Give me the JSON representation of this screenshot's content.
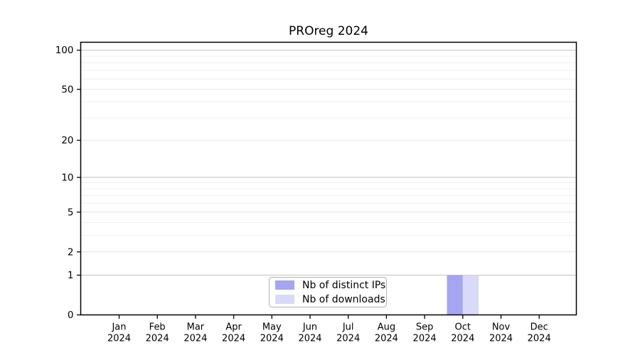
{
  "chart_data": {
    "type": "bar",
    "title": "PROreg 2024",
    "categories": [
      "Jan",
      "Feb",
      "Mar",
      "Apr",
      "May",
      "Jun",
      "Jul",
      "Aug",
      "Sep",
      "Oct",
      "Nov",
      "Dec"
    ],
    "x_tick_year": "2024",
    "series": [
      {
        "name": "Nb of distinct IPs",
        "color": "#a5a5f2",
        "values": [
          0,
          0,
          0,
          0,
          0,
          0,
          0,
          0,
          0,
          1,
          0,
          0
        ]
      },
      {
        "name": "Nb of downloads",
        "color": "#d9d9f8",
        "values": [
          0,
          0,
          0,
          0,
          0,
          0,
          0,
          0,
          0,
          1,
          0,
          0
        ]
      }
    ],
    "y_axis": {
      "scale": "log10(value+1)",
      "major_ticks": [
        0,
        1,
        2,
        5,
        10,
        20,
        50,
        100
      ],
      "decade_ticks": [
        1,
        10,
        100
      ],
      "minor_ticks": [
        3,
        4,
        6,
        7,
        8,
        9,
        30,
        40,
        60,
        70,
        80,
        90
      ],
      "range": [
        0,
        115
      ]
    },
    "grid": {
      "horizontal": true,
      "vertical": false
    },
    "legend": {
      "position": "bottom-center"
    },
    "colors": {
      "axis": "#000000",
      "grid_decade": "#c3c3c3",
      "grid_labeled": "#e4e4e4",
      "grid_minor": "#f0f0f0"
    }
  }
}
